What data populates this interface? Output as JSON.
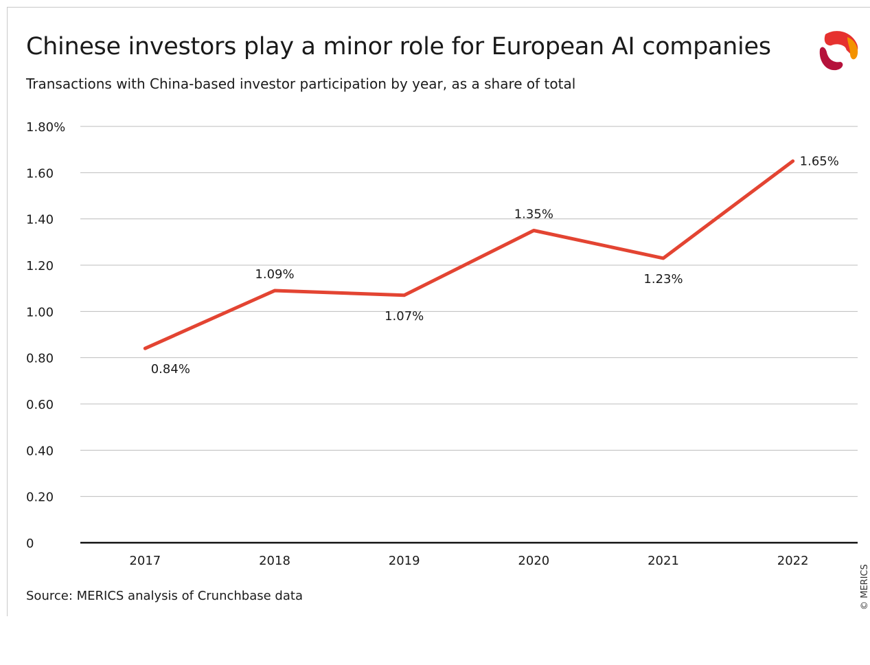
{
  "header": {
    "title": "Chinese investors play a minor role for European AI companies",
    "subtitle": "Transactions with China-based investor participation by year, as a share of total"
  },
  "footer": {
    "source": "Source: MERICS analysis of Crunchbase data",
    "copyright": "© MERICS"
  },
  "logo": {
    "icon": "merics-logo",
    "colors": [
      "#e6312f",
      "#f39200",
      "#b5123b"
    ]
  },
  "chart_data": {
    "type": "line",
    "title": "Chinese investors play a minor role for European AI companies",
    "subtitle": "Transactions with China-based investor participation by year, as a share of total",
    "categories": [
      "2017",
      "2018",
      "2019",
      "2020",
      "2021",
      "2022"
    ],
    "series": [
      {
        "values": [
          0.84,
          1.09,
          1.07,
          1.35,
          1.23,
          1.65
        ],
        "labels": [
          "0.84%",
          "1.09%",
          "1.07%",
          "1.35%",
          "1.23%",
          "1.65%"
        ],
        "label_position": [
          "below",
          "above",
          "below",
          "above",
          "below",
          "right"
        ],
        "color": "#e34432"
      }
    ],
    "yticks": [
      0,
      0.2,
      0.4,
      0.6,
      0.8,
      1.0,
      1.2,
      1.4,
      1.6,
      1.8
    ],
    "ytick_labels": [
      "0",
      "0.20",
      "0.40",
      "0.60",
      "0.80",
      "1.00",
      "1.20",
      "1.40",
      "1.60",
      "1.80%"
    ],
    "ylim": [
      0,
      1.8
    ],
    "grid": true,
    "legend": "none",
    "xlabel": "",
    "ylabel": ""
  }
}
